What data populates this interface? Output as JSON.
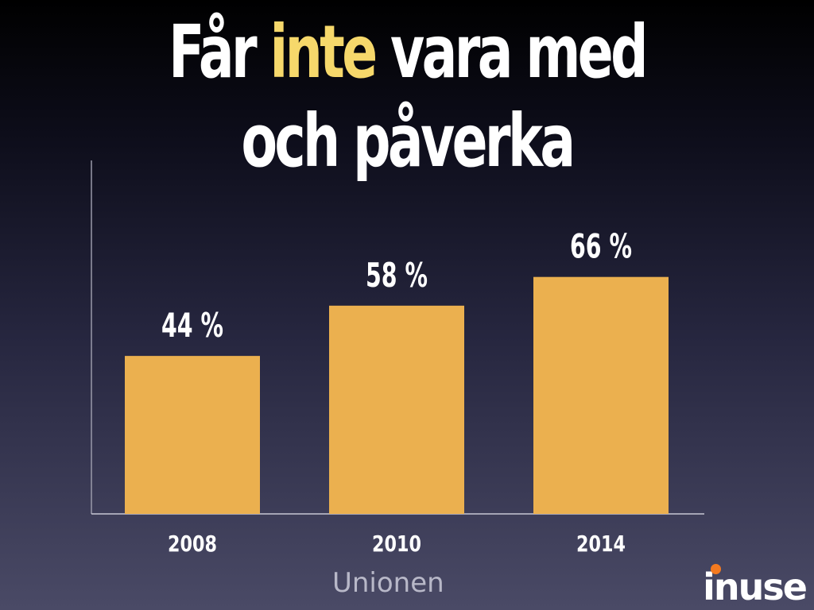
{
  "title": {
    "part1": "Får ",
    "highlight": "inte",
    "part2": " vara med",
    "line2": "och påverka"
  },
  "chart_data": {
    "type": "bar",
    "categories": [
      "2008",
      "2010",
      "2014"
    ],
    "values": [
      44,
      58,
      66
    ],
    "value_labels": [
      "44 %",
      "58 %",
      "66 %"
    ],
    "ylim": [
      0,
      100
    ],
    "bar_color": "#ebb04f",
    "grid": false
  },
  "source": "Unionen",
  "logo": {
    "text": "inuse",
    "accent_color": "#f47a20"
  },
  "colors": {
    "title": "#ffffff",
    "highlight": "#f6d86b"
  }
}
